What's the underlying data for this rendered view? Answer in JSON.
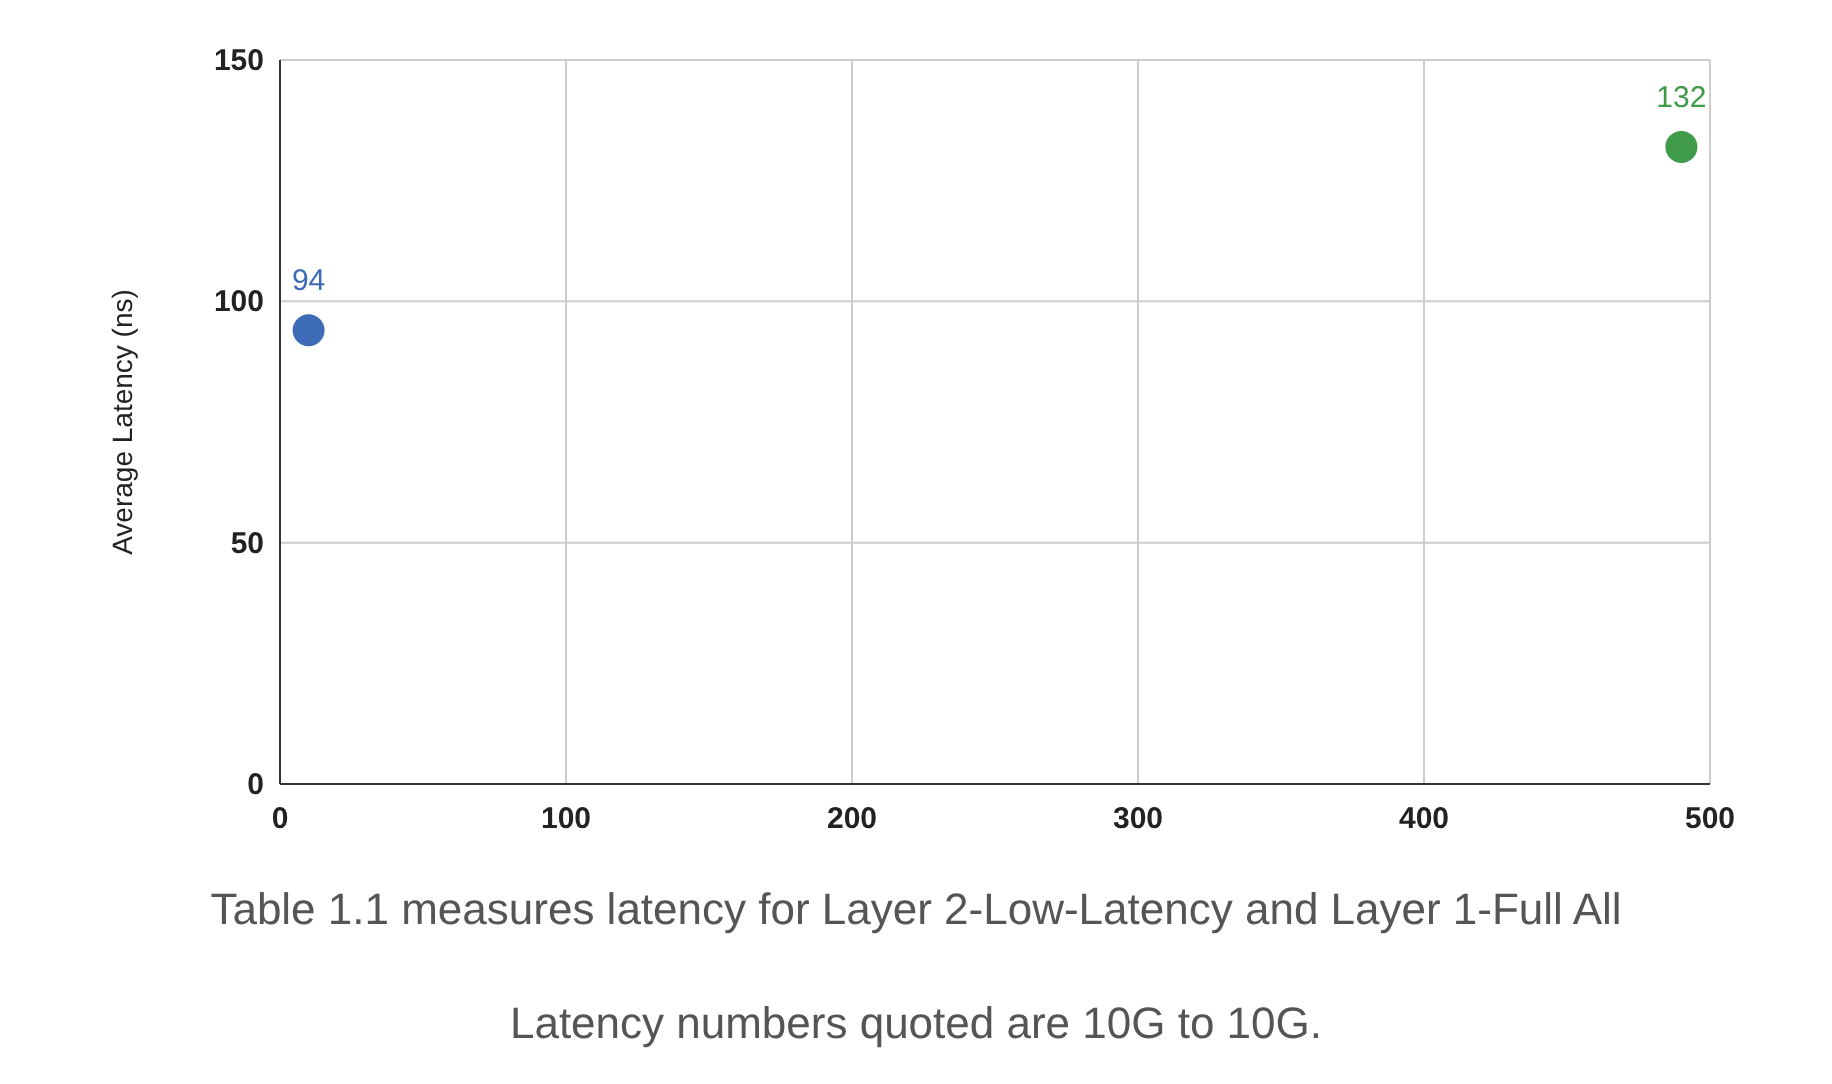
{
  "chart_data": {
    "type": "scatter",
    "ylabel": "Average Latency (ns)",
    "xlim": [
      0,
      500
    ],
    "xticks": [
      0,
      100,
      200,
      300,
      400,
      500
    ],
    "ylim": [
      0,
      150
    ],
    "yticks": [
      0,
      50,
      100,
      150
    ],
    "grid": true,
    "data_labels": true,
    "marker": "circle",
    "series": [
      {
        "color": "#3d6bb5",
        "x": [
          10
        ],
        "values": [
          94
        ]
      },
      {
        "color": "#3f9a4a",
        "x": [
          490
        ],
        "values": [
          132
        ]
      }
    ],
    "annotations": [
      "Table 1.1 measures latency for Layer 2-Low-Latency and Layer 1-Full All Latency numbers quoted are 10G to 10G."
    ]
  }
}
